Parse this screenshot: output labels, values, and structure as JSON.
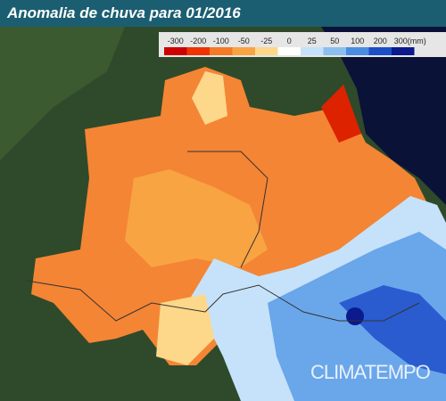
{
  "header": {
    "title": "Anomalia de chuva para 01/2016"
  },
  "legend": {
    "items": [
      {
        "label": "-300",
        "color": "#cc0000"
      },
      {
        "label": "-200",
        "color": "#ee3300"
      },
      {
        "label": "-100",
        "color": "#f47a26"
      },
      {
        "label": "-50",
        "color": "#f9a443"
      },
      {
        "label": "-25",
        "color": "#fdd78a"
      },
      {
        "label": "0",
        "color": "#ffffff"
      },
      {
        "label": "25",
        "color": "#c6e2fa"
      },
      {
        "label": "50",
        "color": "#8cbef0"
      },
      {
        "label": "100",
        "color": "#4a8de0"
      },
      {
        "label": "200",
        "color": "#1c4fc6"
      },
      {
        "label": "300(mm)",
        "color": "#0b1a8c"
      }
    ]
  },
  "watermark": "CLIMATEMPO"
}
